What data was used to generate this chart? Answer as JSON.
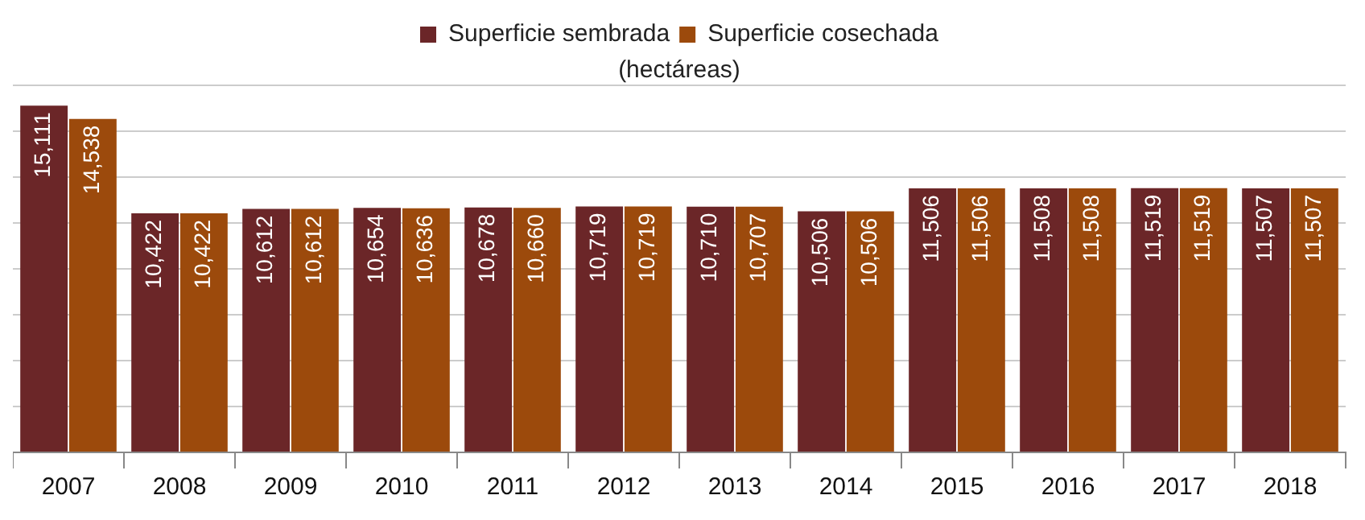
{
  "chart_data": {
    "type": "bar",
    "subtitle": "(hectáreas)",
    "categories": [
      "2007",
      "2008",
      "2009",
      "2010",
      "2011",
      "2012",
      "2013",
      "2014",
      "2015",
      "2016",
      "2017",
      "2018"
    ],
    "series": [
      {
        "name": "Superficie sembrada",
        "color": "#6b2628",
        "values": [
          15111,
          10422,
          10612,
          10654,
          10678,
          10719,
          10710,
          10506,
          11506,
          11508,
          11519,
          11507
        ],
        "value_labels": [
          "15,111",
          "10,422",
          "10,612",
          "10,654",
          "10,678",
          "10,719",
          "10,710",
          "10,506",
          "11,506",
          "11,508",
          "11,519",
          "11,507"
        ]
      },
      {
        "name": "Superficie cosechada",
        "color": "#9c4a0c",
        "values": [
          14538,
          10422,
          10612,
          10636,
          10660,
          10719,
          10707,
          10506,
          11506,
          11508,
          11519,
          11507
        ],
        "value_labels": [
          "14,538",
          "10,422",
          "10,612",
          "10,636",
          "10,660",
          "10,719",
          "10,707",
          "10,506",
          "11,506",
          "11,508",
          "11,519",
          "11,507"
        ]
      }
    ],
    "grid": "y",
    "legend": "top",
    "tick_labels": "x"
  }
}
